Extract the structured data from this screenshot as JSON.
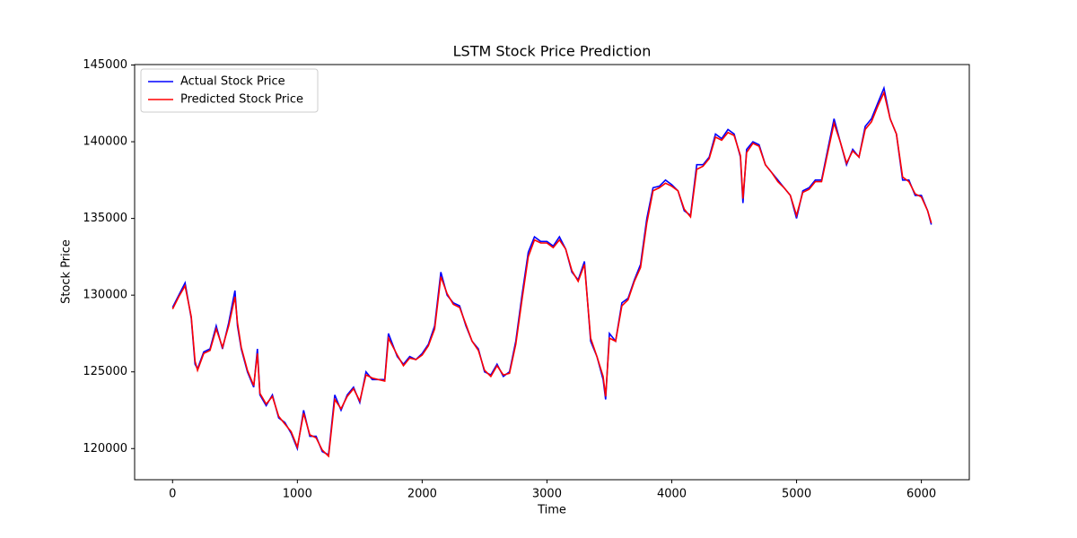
{
  "chart_data": {
    "type": "line",
    "title": "LSTM Stock Price Prediction",
    "x_label": "Time",
    "y_label": "Stock Price",
    "x": [
      0,
      50,
      100,
      150,
      180,
      200,
      250,
      300,
      350,
      400,
      450,
      500,
      520,
      550,
      600,
      650,
      680,
      700,
      750,
      800,
      850,
      900,
      950,
      1000,
      1050,
      1100,
      1150,
      1200,
      1250,
      1300,
      1350,
      1400,
      1450,
      1500,
      1550,
      1600,
      1700,
      1730,
      1800,
      1850,
      1900,
      1950,
      2000,
      2050,
      2100,
      2150,
      2200,
      2250,
      2300,
      2350,
      2400,
      2450,
      2500,
      2550,
      2600,
      2650,
      2700,
      2750,
      2800,
      2850,
      2900,
      2950,
      3000,
      3050,
      3100,
      3150,
      3200,
      3250,
      3300,
      3350,
      3400,
      3450,
      3470,
      3500,
      3550,
      3600,
      3650,
      3700,
      3750,
      3800,
      3850,
      3900,
      3950,
      4000,
      4050,
      4100,
      4150,
      4200,
      4250,
      4300,
      4350,
      4400,
      4450,
      4500,
      4550,
      4570,
      4600,
      4650,
      4700,
      4750,
      4800,
      4850,
      4900,
      4950,
      5000,
      5050,
      5100,
      5150,
      5200,
      5250,
      5300,
      5350,
      5400,
      5450,
      5500,
      5550,
      5600,
      5650,
      5700,
      5750,
      5800,
      5850,
      5900,
      5950,
      6000,
      6050,
      6080
    ],
    "series": [
      {
        "name": "Actual Stock Price",
        "color": "#0000ff",
        "values": [
          129200,
          130000,
          130800,
          128500,
          125500,
          125200,
          126300,
          126500,
          128000,
          126500,
          128200,
          130300,
          128000,
          126500,
          125000,
          124000,
          126500,
          123500,
          122800,
          123500,
          122000,
          121700,
          121000,
          120000,
          122500,
          120800,
          120800,
          119800,
          119600,
          123500,
          122500,
          123500,
          124000,
          123000,
          125000,
          124500,
          124500,
          127500,
          126000,
          125500,
          126000,
          125800,
          126200,
          126800,
          128000,
          131500,
          130000,
          129500,
          129300,
          128000,
          127000,
          126500,
          125000,
          124800,
          125500,
          124700,
          125000,
          127000,
          130000,
          132800,
          133800,
          133500,
          133500,
          133200,
          133800,
          133000,
          131500,
          131000,
          132200,
          127000,
          126000,
          124500,
          123200,
          127500,
          127000,
          129500,
          129800,
          131000,
          132000,
          135000,
          137000,
          137100,
          137500,
          137200,
          136800,
          135500,
          135200,
          138500,
          138500,
          139000,
          140500,
          140200,
          140800,
          140500,
          139000,
          136000,
          139500,
          140000,
          139800,
          138500,
          138000,
          137500,
          137000,
          136500,
          135000,
          136800,
          137000,
          137500,
          137500,
          139500,
          141500,
          140000,
          138500,
          139500,
          139000,
          141000,
          141500,
          142500,
          143500,
          141500,
          140500,
          137500,
          137500,
          136500,
          136500,
          135500,
          134600
        ]
      },
      {
        "name": "Predicted Stock Price",
        "color": "#ff0000",
        "values": [
          129100,
          129900,
          130600,
          128600,
          125700,
          125100,
          126200,
          126400,
          127800,
          126600,
          128000,
          129900,
          128200,
          126600,
          125100,
          124100,
          126200,
          123600,
          122900,
          123400,
          122100,
          121600,
          121100,
          120100,
          122300,
          120900,
          120700,
          119900,
          119500,
          123200,
          122600,
          123400,
          123900,
          123100,
          124800,
          124600,
          124400,
          127200,
          126100,
          125400,
          125900,
          125800,
          126100,
          126700,
          127800,
          131200,
          130100,
          129400,
          129200,
          128100,
          127000,
          126400,
          125100,
          124700,
          125400,
          124800,
          124900,
          126800,
          129700,
          132500,
          133600,
          133400,
          133400,
          133100,
          133600,
          133000,
          131600,
          130900,
          132000,
          127200,
          126000,
          124700,
          123400,
          127200,
          127000,
          129300,
          129700,
          130900,
          131800,
          134700,
          136800,
          137000,
          137300,
          137100,
          136800,
          135600,
          135100,
          138200,
          138400,
          138900,
          140300,
          140100,
          140600,
          140400,
          139100,
          136300,
          139300,
          139900,
          139700,
          138500,
          138000,
          137400,
          137000,
          136500,
          135200,
          136700,
          136900,
          137400,
          137400,
          139300,
          141200,
          140000,
          138600,
          139400,
          139000,
          140800,
          141300,
          142300,
          143200,
          141500,
          140500,
          137700,
          137400,
          136600,
          136400,
          135500,
          134700
        ]
      }
    ],
    "xlim": [
      -304,
      6384
    ],
    "ylim": [
      117970,
      145030
    ],
    "xticks": [
      0,
      1000,
      2000,
      3000,
      4000,
      5000,
      6000
    ],
    "yticks": [
      120000,
      125000,
      130000,
      135000,
      140000,
      145000
    ],
    "legend": "upper left"
  }
}
